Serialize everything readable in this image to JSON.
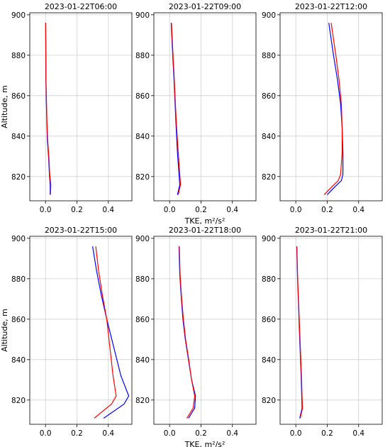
{
  "chart_data": [
    {
      "type": "line",
      "title": "2023-01-22T06:00",
      "xlabel": "",
      "ylabel": "Altitude, m",
      "xlim": [
        -0.1,
        0.55
      ],
      "ylim": [
        808,
        901
      ],
      "xticks": [
        "0.0",
        "0.2",
        "0.4"
      ],
      "yticks": [
        "820",
        "840",
        "860",
        "880",
        "900"
      ],
      "grid": true,
      "series": [
        {
          "color": "#0000ff",
          "x": [
            0.03,
            0.03,
            0.025,
            0.02,
            0.012,
            0.008,
            0.005,
            0.003,
            0.002,
            0.001
          ],
          "y": [
            811,
            816,
            821,
            829,
            838,
            848,
            858,
            868,
            880,
            896
          ]
        },
        {
          "color": "#ff0000",
          "x": [
            0.032,
            0.034,
            0.027,
            0.022,
            0.014,
            0.009,
            0.006,
            0.003,
            0.002,
            0.001
          ],
          "y": [
            811,
            816,
            821,
            829,
            838,
            848,
            858,
            868,
            880,
            896
          ]
        }
      ]
    },
    {
      "type": "line",
      "title": "2023-01-22T09:00",
      "xlabel": "TKE, m²/s²",
      "ylabel": "",
      "xlim": [
        -0.1,
        0.55
      ],
      "ylim": [
        808,
        901
      ],
      "xticks": [
        "0.0",
        "0.2",
        "0.4"
      ],
      "yticks": [
        "820",
        "840",
        "860",
        "880",
        "900"
      ],
      "grid": true,
      "series": [
        {
          "color": "#0000ff",
          "x": [
            0.05,
            0.065,
            0.06,
            0.05,
            0.042,
            0.035,
            0.028,
            0.02,
            0.01
          ],
          "y": [
            811,
            816,
            821,
            832,
            844,
            856,
            868,
            880,
            896
          ]
        },
        {
          "color": "#ff0000",
          "x": [
            0.055,
            0.07,
            0.065,
            0.055,
            0.045,
            0.037,
            0.03,
            0.022,
            0.012
          ],
          "y": [
            811,
            816,
            821,
            832,
            844,
            856,
            868,
            880,
            896
          ]
        }
      ]
    },
    {
      "type": "line",
      "title": "2023-01-22T12:00",
      "xlabel": "",
      "ylabel": "",
      "xlim": [
        -0.1,
        0.55
      ],
      "ylim": [
        808,
        901
      ],
      "xticks": [
        "0.0",
        "0.2",
        "0.4"
      ],
      "yticks": [
        "820",
        "840",
        "860",
        "880",
        "900"
      ],
      "grid": true,
      "series": [
        {
          "color": "#0000ff",
          "x": [
            0.2,
            0.25,
            0.29,
            0.3,
            0.3,
            0.295,
            0.285,
            0.265,
            0.24,
            0.21
          ],
          "y": [
            811,
            815,
            818,
            821,
            832,
            844,
            856,
            868,
            880,
            896
          ]
        },
        {
          "color": "#ff0000",
          "x": [
            0.18,
            0.23,
            0.27,
            0.285,
            0.295,
            0.295,
            0.29,
            0.275,
            0.255,
            0.225
          ],
          "y": [
            811,
            815,
            818,
            821,
            832,
            844,
            856,
            868,
            880,
            896
          ]
        }
      ]
    },
    {
      "type": "line",
      "title": "2023-01-22T15:00",
      "xlabel": "",
      "ylabel": "Altitude, m",
      "xlim": [
        -0.1,
        0.55
      ],
      "ylim": [
        808,
        901
      ],
      "xticks": [
        "0.0",
        "0.2",
        "0.4"
      ],
      "yticks": [
        "820",
        "840",
        "860",
        "880",
        "900"
      ],
      "grid": true,
      "series": [
        {
          "color": "#0000ff",
          "x": [
            0.37,
            0.5,
            0.53,
            0.48,
            0.435,
            0.39,
            0.355,
            0.325,
            0.3
          ],
          "y": [
            811,
            818,
            822,
            832,
            846,
            860,
            872,
            884,
            896
          ]
        },
        {
          "color": "#ff0000",
          "x": [
            0.31,
            0.42,
            0.45,
            0.43,
            0.41,
            0.39,
            0.362,
            0.338,
            0.32
          ],
          "y": [
            811,
            818,
            822,
            832,
            846,
            860,
            872,
            884,
            896
          ]
        }
      ]
    },
    {
      "type": "line",
      "title": "2023-01-22T18:00",
      "xlabel": "TKE, m²/s²",
      "ylabel": "",
      "xlim": [
        -0.1,
        0.55
      ],
      "ylim": [
        808,
        901
      ],
      "xticks": [
        "0.0",
        "0.2",
        "0.4"
      ],
      "yticks": [
        "820",
        "840",
        "860",
        "880",
        "900"
      ],
      "grid": true,
      "series": [
        {
          "color": "#0000ff",
          "x": [
            0.12,
            0.16,
            0.165,
            0.14,
            0.12,
            0.1,
            0.085,
            0.075,
            0.065,
            0.06
          ],
          "y": [
            811,
            816,
            822,
            830,
            840,
            850,
            860,
            870,
            882,
            896
          ]
        },
        {
          "color": "#ff0000",
          "x": [
            0.11,
            0.15,
            0.16,
            0.14,
            0.122,
            0.102,
            0.088,
            0.077,
            0.067,
            0.062
          ],
          "y": [
            811,
            816,
            822,
            830,
            840,
            850,
            860,
            870,
            882,
            896
          ]
        }
      ]
    },
    {
      "type": "line",
      "title": "2023-01-22T21:00",
      "xlabel": "",
      "ylabel": "",
      "xlim": [
        -0.1,
        0.55
      ],
      "ylim": [
        808,
        901
      ],
      "xticks": [
        "0.0",
        "0.2",
        "0.4"
      ],
      "yticks": [
        "820",
        "840",
        "860",
        "880",
        "900"
      ],
      "grid": true,
      "series": [
        {
          "color": "#0000ff",
          "x": [
            0.025,
            0.04,
            0.038,
            0.034,
            0.028,
            0.022,
            0.017,
            0.011,
            0.006
          ],
          "y": [
            811,
            816,
            821,
            832,
            844,
            856,
            868,
            880,
            896
          ]
        },
        {
          "color": "#ff0000",
          "x": [
            0.028,
            0.043,
            0.04,
            0.036,
            0.03,
            0.024,
            0.018,
            0.012,
            0.007
          ],
          "y": [
            811,
            816,
            821,
            832,
            844,
            856,
            868,
            880,
            896
          ]
        }
      ]
    }
  ]
}
